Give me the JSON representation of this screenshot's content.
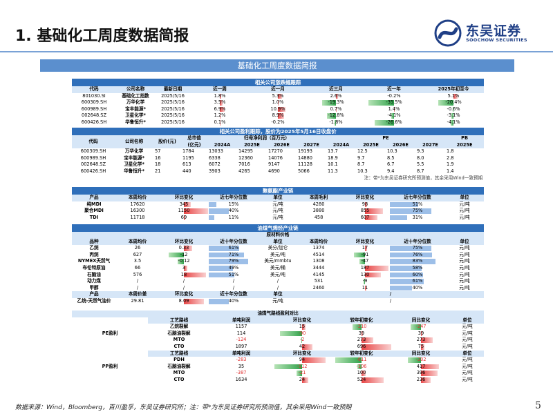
{
  "header": {
    "title": "1. 基础化工周度数据简报",
    "logo_cn": "东吴证券",
    "logo_en": "SOOCHOW SECURITIES"
  },
  "banner": "基础化工周度数据简报",
  "perf": {
    "section": "相关公司涨跌幅跟踪",
    "headers": [
      "代码",
      "公司名称",
      "最新日期",
      "近一周",
      "近一月",
      "近三月",
      "近一年",
      "2025年初至今"
    ],
    "rows": [
      [
        "801030.SI",
        "基础化工指数",
        "2025/5/16",
        "1.8%",
        "5.3%",
        "2.6%",
        "-0.2%",
        "5.1%"
      ],
      [
        "600309.SH",
        "万华化学",
        "2025/5/16",
        "3.5%",
        "1.0%",
        "-19.3%",
        "-35.5%",
        "-20.4%"
      ],
      [
        "600989.SH",
        "宝丰能源*",
        "2025/5/16",
        "6.9%",
        "10.9%",
        "0.7%",
        "1.4%",
        "-0.6%"
      ],
      [
        "002648.SZ",
        "卫星化学*",
        "2025/5/16",
        "1.2%",
        "8.9%",
        "-12.8%",
        "-4.1%",
        "-3.1%"
      ],
      [
        "600426.SH",
        "华鲁恒升*",
        "2025/5/16",
        "0.1%",
        "-0.2%",
        "-1.8%",
        "-26.6%",
        "-4.1%"
      ]
    ]
  },
  "earn": {
    "section": "相关公司盈利跟踪，股价为2025年5月16日收盘价",
    "h_code": "代码",
    "h_name": "公司名称",
    "h_price": "股价(元)",
    "h_mcap": "总市值",
    "h_mcap2": "(亿元)",
    "h_np": "归母净利润（百万元）",
    "h_pe": "PE",
    "h_pb": "PB",
    "years": [
      "2024A",
      "2025E",
      "2026E",
      "2027E",
      "2024A",
      "2025E",
      "2026E",
      "2027E",
      "2025E"
    ],
    "rows": [
      [
        "600309.SH",
        "万华化学",
        "57",
        "1784",
        "13033",
        "14295",
        "17270",
        "19193",
        "13.7",
        "12.5",
        "10.3",
        "9.3",
        "1.8"
      ],
      [
        "600989.SH",
        "宝丰能源*",
        "16",
        "1195",
        "6338",
        "12360",
        "14076",
        "14880",
        "18.9",
        "9.7",
        "8.5",
        "8.0",
        "2.8"
      ],
      [
        "002648.SZ",
        "卫星化学*",
        "18",
        "613",
        "6072",
        "7016",
        "9147",
        "11128",
        "10.1",
        "8.7",
        "6.7",
        "5.5",
        "1.9"
      ],
      [
        "600426.SH",
        "华鲁恒升*",
        "21",
        "440",
        "3903",
        "4265",
        "4690",
        "5066",
        "11.3",
        "10.3",
        "9.4",
        "8.7",
        "1.4"
      ]
    ],
    "note": "注：带*为东吴证券研究所预测值，其余采用Wind一致预期"
  },
  "mdi": {
    "section": "聚氨酯产业链",
    "headers": [
      "产品",
      "本周均价",
      "环比变化",
      "近七年分位数",
      "单位",
      "本周毛利",
      "环比变化",
      "近七年分位数",
      "单位"
    ],
    "rows": [
      [
        "纯MDI",
        "17620",
        "345",
        "15%",
        "元/吨",
        "4280",
        "98",
        "51%",
        "元/吨"
      ],
      [
        "聚合MDI",
        "16300",
        "1150",
        "40%",
        "元/吨",
        "3880",
        "855",
        "75%",
        "元/吨"
      ],
      [
        "TDI",
        "11718",
        "69",
        "11%",
        "元/吨",
        "458",
        "607",
        "31%",
        "元/吨"
      ]
    ]
  },
  "coal": {
    "section": "油煤气烯烃产业链",
    "sub": "原材料价格",
    "headers": [
      "品种",
      "本周均价",
      "环比变化",
      "近十年分位数",
      "单位",
      "本周均价",
      "环比变化",
      "近十年分位数",
      "单位"
    ],
    "rows": [
      [
        "乙烷",
        "26",
        "0.33",
        "61%",
        "美分/加仑",
        "1374",
        "17",
        "75%",
        "元/吨"
      ],
      [
        "丙烷",
        "627",
        "-12",
        "71%",
        "美元/吨",
        "4514",
        "-91",
        "76%",
        "元/吨"
      ],
      [
        "NYMEX天然气",
        "3.5",
        "-0.12",
        "79%",
        "美元/mmbtu",
        "1308",
        "-47",
        "83%",
        "元/吨"
      ],
      [
        "布伦特原油",
        "66",
        "3",
        "49%",
        "美元/桶",
        "3444",
        "187",
        "58%",
        "元/吨"
      ],
      [
        "石脑油",
        "576",
        "18",
        "51%",
        "美元/吨",
        "4145",
        "130",
        "60%",
        "元/吨"
      ],
      [
        "动力煤",
        "/",
        "/",
        "/",
        "/",
        "531",
        "-9",
        "61%",
        "元/吨"
      ],
      [
        "甲醇",
        "/",
        "/",
        "/",
        "/",
        "2460",
        "11",
        "40%",
        "元/吨"
      ]
    ],
    "h2": [
      "产品",
      "本周价差",
      "环比变化",
      "近十年分位数",
      "单位",
      "/"
    ],
    "row2": [
      "乙烷-天然气油价",
      "29.81",
      "8.09",
      "40%",
      "元/吨",
      "/"
    ]
  },
  "olefin": {
    "sub": "油煤气路线盈利对比",
    "headers": [
      "工艺路线",
      "单吨利润",
      "环比变化",
      "较年初变化",
      "同比变化",
      "单位"
    ],
    "pe_label": "PE盈利",
    "pe_rows": [
      [
        "乙烷裂解",
        "1157",
        "15",
        "-210",
        "-247",
        "元/吨"
      ],
      [
        "石脑油裂解",
        "114",
        "-90",
        "39",
        "39",
        "元/吨"
      ],
      [
        "MTO",
        "-124",
        "-2",
        "273",
        "273",
        "元/吨"
      ],
      [
        "CTO",
        "1897",
        "42",
        "696",
        "75",
        "元/吨"
      ]
    ],
    "pp_label": "PP盈利",
    "pp_rows": [
      [
        "PDH",
        "-283",
        "94",
        "-611",
        "-302",
        "元/吨"
      ],
      [
        "石脑油裂解",
        "35",
        "-112",
        "-106",
        "417",
        "元/吨"
      ],
      [
        "MTO",
        "-387",
        "-21",
        "100",
        "396",
        "元/吨"
      ],
      [
        "CTO",
        "1634",
        "24",
        "524",
        "236",
        "元/吨"
      ]
    ]
  },
  "footer": "数据来源：Wind，Bloomberg，百川盈孚，东吴证券研究所；注：带*为东吴证券研究所预测值，其余采用Wind一致预期",
  "page_number": "5",
  "colors": {
    "accent": "#2f6fba",
    "banner": "#5b8fce",
    "header_fill": "#d6e6f7",
    "negative": "#e03030"
  }
}
